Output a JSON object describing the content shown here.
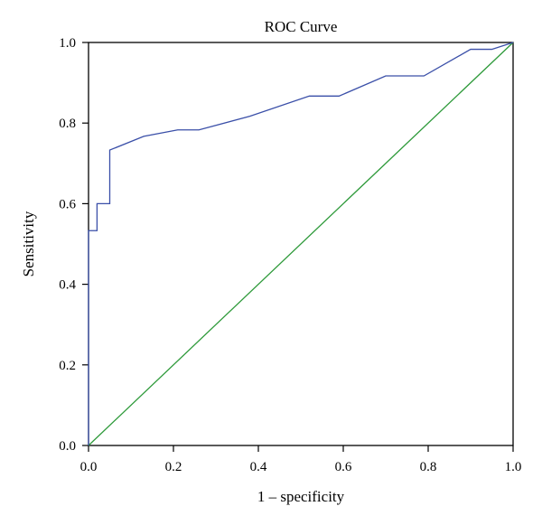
{
  "chart_data": {
    "type": "line",
    "title": "ROC Curve",
    "xlabel": "1 – specificity",
    "ylabel": "Sensitivity",
    "xlim": [
      0,
      1
    ],
    "ylim": [
      0,
      1
    ],
    "xticks": [
      "0.0",
      "0.2",
      "0.4",
      "0.6",
      "0.8",
      "1.0"
    ],
    "yticks": [
      "0.0",
      "0.2",
      "0.4",
      "0.6",
      "0.8",
      "1.0"
    ],
    "grid": false,
    "legend": "none",
    "series": [
      {
        "color": "#3a4fa8",
        "x": [
          0.0,
          0.0,
          0.02,
          0.02,
          0.05,
          0.05,
          0.13,
          0.21,
          0.26,
          0.38,
          0.52,
          0.59,
          0.7,
          0.79,
          0.9,
          0.95,
          1.0
        ],
        "y": [
          0.0,
          0.533,
          0.533,
          0.6,
          0.6,
          0.733,
          0.767,
          0.783,
          0.783,
          0.817,
          0.867,
          0.867,
          0.917,
          0.917,
          0.983,
          0.983,
          1.0
        ]
      },
      {
        "color": "#2e9a3a",
        "x": [
          0.0,
          1.0
        ],
        "y": [
          0.0,
          1.0
        ]
      }
    ]
  }
}
